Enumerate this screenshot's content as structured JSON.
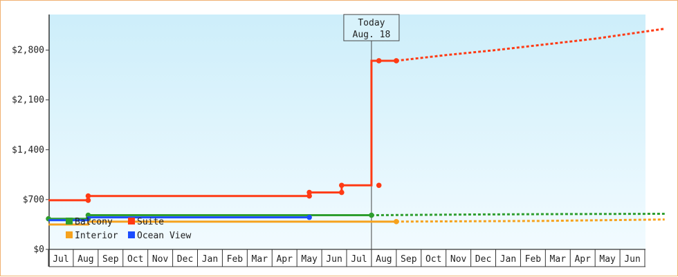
{
  "chart_data": {
    "type": "line",
    "x_unit": "month",
    "x_range": [
      "Jun 2015",
      "Jul 2016"
    ],
    "categories": [
      "Jul",
      "Aug",
      "Sep",
      "Oct",
      "Nov",
      "Dec",
      "Jan",
      "Feb",
      "Mar",
      "Apr",
      "May",
      "Jun",
      "Jul",
      "Aug",
      "Sep",
      "Oct",
      "Nov",
      "Dec",
      "Jan",
      "Feb",
      "Mar",
      "Apr",
      "May",
      "Jun"
    ],
    "ylim": [
      0,
      3300
    ],
    "y_ticks": [
      0,
      700,
      1400,
      2100,
      2800
    ],
    "y_tick_labels": [
      "$0",
      "$700",
      "$1,400",
      "$2,100",
      "$2,800"
    ],
    "today_marker": {
      "line1": "Today",
      "line2": "Aug. 18",
      "x": 13.0
    },
    "colors": {
      "background_top": "#cdeefa",
      "background_bottom": "#f2fbff",
      "frame_border": "#f0b070"
    },
    "legend": {
      "placement": "bottom-left inside plot",
      "items": [
        {
          "label": "Balcony",
          "color": "#2e9e2e"
        },
        {
          "label": "Suite",
          "color": "#ff3a14"
        },
        {
          "label": "Interior",
          "color": "#f6a21d"
        },
        {
          "label": "Ocean View",
          "color": "#1a4cff"
        }
      ]
    },
    "series": [
      {
        "name": "Balcony",
        "color": "#2e9e2e",
        "values": [
          [
            0.0,
            430
          ],
          [
            1.6,
            430
          ],
          [
            1.6,
            480
          ],
          [
            13.0,
            480
          ]
        ],
        "markers": [
          [
            0.0,
            430
          ],
          [
            1.6,
            430
          ],
          [
            1.6,
            480
          ],
          [
            13.0,
            480
          ]
        ],
        "projection": [
          [
            13.0,
            480
          ],
          [
            15.0,
            485
          ],
          [
            17.0,
            490
          ],
          [
            20.0,
            495
          ],
          [
            24.8,
            500
          ]
        ]
      },
      {
        "name": "Suite",
        "color": "#ff3a14",
        "values": [
          [
            0.0,
            690
          ],
          [
            1.6,
            690
          ],
          [
            1.6,
            750
          ],
          [
            10.5,
            750
          ],
          [
            10.5,
            800
          ],
          [
            11.8,
            800
          ],
          [
            11.8,
            900
          ],
          [
            13.0,
            900
          ],
          [
            13.0,
            2650
          ],
          [
            14.0,
            2650
          ]
        ],
        "markers": [
          [
            1.6,
            690
          ],
          [
            1.6,
            750
          ],
          [
            10.5,
            750
          ],
          [
            10.5,
            800
          ],
          [
            11.8,
            800
          ],
          [
            11.8,
            900
          ],
          [
            13.3,
            900
          ],
          [
            13.3,
            2650
          ],
          [
            14.0,
            2650
          ]
        ],
        "projection": [
          [
            14.0,
            2650
          ],
          [
            16.0,
            2730
          ],
          [
            18.0,
            2800
          ],
          [
            20.0,
            2880
          ],
          [
            22.0,
            2960
          ],
          [
            24.8,
            3100
          ]
        ]
      },
      {
        "name": "Interior",
        "color": "#f6a21d",
        "values": [
          [
            0.0,
            350
          ],
          [
            1.6,
            350
          ],
          [
            1.6,
            390
          ],
          [
            14.0,
            390
          ]
        ],
        "markers": [
          [
            14.0,
            390
          ]
        ],
        "projection": [
          [
            14.0,
            390
          ],
          [
            17.0,
            395
          ],
          [
            20.0,
            400
          ],
          [
            24.8,
            420
          ]
        ]
      },
      {
        "name": "Ocean View",
        "color": "#1a4cff",
        "values": [
          [
            0.0,
            410
          ],
          [
            1.6,
            410
          ],
          [
            1.6,
            450
          ],
          [
            10.5,
            450
          ]
        ],
        "markers": [
          [
            10.5,
            450
          ]
        ]
      }
    ]
  }
}
